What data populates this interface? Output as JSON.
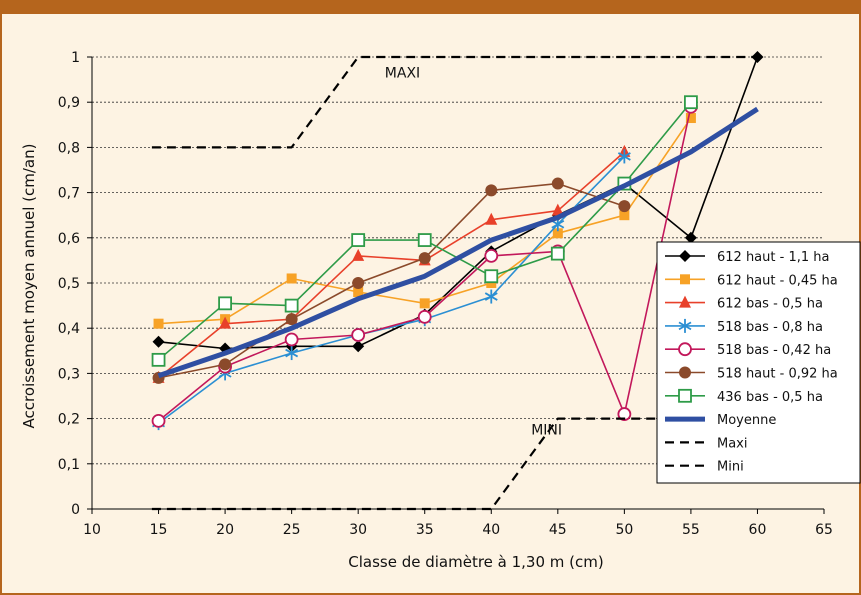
{
  "chart_data": {
    "type": "line",
    "title": "",
    "xlabel": "Classe de diamètre à 1,30 m (cm)",
    "ylabel": "Accroissement moyen annuel (cm/an)",
    "xlim": [
      10,
      65
    ],
    "ylim": [
      0,
      1
    ],
    "x_ticks": [
      "10",
      "15",
      "20",
      "25",
      "30",
      "35",
      "40",
      "45",
      "50",
      "55",
      "60",
      "65"
    ],
    "y_ticks": [
      "0",
      "0,1",
      "0,2",
      "0,3",
      "0,4",
      "0,5",
      "0,6",
      "0,7",
      "0,8",
      "0,9",
      "1"
    ],
    "grid": "horizontal dashed",
    "legend_position": "right",
    "annotations": [
      {
        "text": "MAXI",
        "x": 32,
        "y": 0.955
      },
      {
        "text": "MINI",
        "x": 43,
        "y": 0.165
      }
    ],
    "series": [
      {
        "name": "612 haut - 1,1 ha",
        "color": "#000000",
        "marker": "diamond",
        "x": [
          15,
          20,
          25,
          30,
          35,
          40,
          45,
          50,
          55,
          60
        ],
        "y": [
          0.37,
          0.355,
          0.36,
          0.36,
          0.43,
          0.57,
          0.65,
          0.72,
          0.6,
          1.0
        ]
      },
      {
        "name": "612 haut - 0,45 ha",
        "color": "#f7a226",
        "marker": "square",
        "x": [
          15,
          20,
          25,
          30,
          35,
          40,
          45,
          50,
          55
        ],
        "y": [
          0.41,
          0.42,
          0.51,
          0.48,
          0.455,
          0.5,
          0.61,
          0.65,
          0.865
        ]
      },
      {
        "name": "612 bas - 0,5 ha",
        "color": "#e8402a",
        "marker": "triangle",
        "x": [
          15,
          20,
          25,
          30,
          35,
          40,
          45,
          50
        ],
        "y": [
          0.29,
          0.41,
          0.42,
          0.56,
          0.55,
          0.64,
          0.66,
          0.79
        ]
      },
      {
        "name": "518 bas - 0,8 ha",
        "color": "#2b8fd3",
        "marker": "star",
        "x": [
          15,
          20,
          25,
          30,
          35,
          40,
          45,
          50
        ],
        "y": [
          0.19,
          0.3,
          0.345,
          0.385,
          0.42,
          0.47,
          0.63,
          0.78
        ]
      },
      {
        "name": "518 bas - 0,42 ha",
        "color": "#c2185b",
        "marker": "circle-open",
        "x": [
          15,
          20,
          25,
          30,
          35,
          40,
          45,
          50,
          55
        ],
        "y": [
          0.195,
          0.315,
          0.375,
          0.385,
          0.425,
          0.56,
          0.57,
          0.21,
          0.89
        ]
      },
      {
        "name": "518 haut - 0,92 ha",
        "color": "#8b4a2b",
        "marker": "circle",
        "x": [
          15,
          20,
          25,
          30,
          35,
          40,
          45,
          50
        ],
        "y": [
          0.29,
          0.32,
          0.42,
          0.5,
          0.555,
          0.705,
          0.72,
          0.67
        ]
      },
      {
        "name": "436 bas - 0,5 ha",
        "color": "#2e9b48",
        "marker": "square-open",
        "x": [
          15,
          20,
          25,
          30,
          35,
          40,
          45,
          50,
          55
        ],
        "y": [
          0.33,
          0.455,
          0.45,
          0.595,
          0.595,
          0.515,
          0.565,
          0.72,
          0.9
        ]
      },
      {
        "name": "Moyenne",
        "color": "#2f4fa2",
        "marker": "none",
        "thick": true,
        "x": [
          15,
          20,
          25,
          30,
          35,
          40,
          45,
          50,
          55,
          60
        ],
        "y": [
          0.295,
          0.345,
          0.4,
          0.465,
          0.515,
          0.595,
          0.645,
          0.715,
          0.79,
          0.885
        ]
      },
      {
        "name": "Maxi",
        "color": "#000000",
        "marker": "none",
        "dashed": true,
        "x": [
          14.5,
          25,
          30,
          60
        ],
        "y": [
          0.8,
          0.8,
          1.0,
          1.0
        ]
      },
      {
        "name": "Mini",
        "color": "#000000",
        "marker": "none",
        "dashed": true,
        "x": [
          14.5,
          40,
          45,
          60
        ],
        "y": [
          0.0,
          0.0,
          0.2,
          0.2
        ]
      }
    ]
  }
}
